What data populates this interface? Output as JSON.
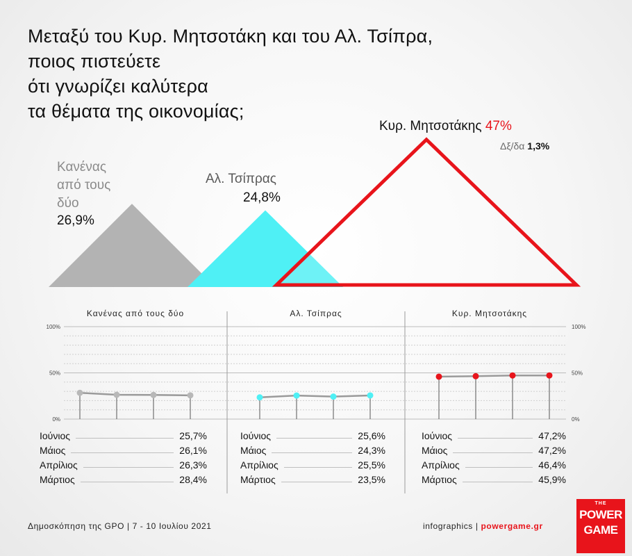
{
  "title": {
    "line1": "Μεταξύ του Κυρ. Μητσοτάκη και του Αλ. Τσίπρα,",
    "line2": "ποιος πιστεύετε",
    "line3": "ότι γνωρίζει καλύτερα",
    "line4": "τα θέματα της οικονομίας;"
  },
  "triangles": {
    "none": {
      "label1": "Κανένας",
      "label2": "από τους",
      "label3": "δύο",
      "value": "26,9%",
      "pct": 26.9,
      "color": "#b3b3b3"
    },
    "tsipras": {
      "label": "Αλ. Τσίπρας",
      "value": "24,8%",
      "pct": 24.8,
      "color": "#4ff0f5"
    },
    "mitsotakis": {
      "label": "Κυρ. Μητσοτάκης",
      "value": "47%",
      "pct": 47,
      "color": "#e8141b"
    },
    "dk_label": "Δξ/δα",
    "dk_value": "1,3%"
  },
  "panels": [
    {
      "title": "Κανένας από τους δύο",
      "dot_color": "#b8b8b8"
    },
    {
      "title": "Αλ. Τσίπρας",
      "dot_color": "#4ff0f5"
    },
    {
      "title": "Κυρ. Μητσοτάκης",
      "dot_color": "#e8141b"
    }
  ],
  "axis_left": [
    "100%",
    "50%",
    "0%"
  ],
  "axis_right": [
    "100%",
    "50%",
    "0%"
  ],
  "chart_data": [
    {
      "type": "line",
      "title": "Κανένας από τους δύο",
      "categories": [
        "Ιούνιος",
        "Μάιος",
        "Απρίλιος",
        "Μάρτιος"
      ],
      "values": [
        25.7,
        26.1,
        26.3,
        28.4
      ],
      "labels": [
        "25,7%",
        "26,1%",
        "26,3%",
        "28,4%"
      ],
      "ylim": [
        0,
        100
      ]
    },
    {
      "type": "line",
      "title": "Αλ. Τσίπρας",
      "categories": [
        "Ιούνιος",
        "Μάιος",
        "Απρίλιος",
        "Μάρτιος"
      ],
      "values": [
        25.6,
        24.3,
        25.5,
        23.5
      ],
      "labels": [
        "25,6%",
        "24,3%",
        "25,5%",
        "23,5%"
      ],
      "ylim": [
        0,
        100
      ]
    },
    {
      "type": "line",
      "title": "Κυρ. Μητσοτάκης",
      "categories": [
        "Ιούνιος",
        "Μάιος",
        "Απρίλιος",
        "Μάρτιος"
      ],
      "values": [
        47.2,
        47.2,
        46.4,
        45.9
      ],
      "labels": [
        "47,2%",
        "47,2%",
        "46,4%",
        "45,9%"
      ],
      "ylim": [
        0,
        100
      ]
    }
  ],
  "footer": {
    "source": "Δημοσκόπηση της GPO | 7 - 10 Ιουλίου 2021",
    "credit": "infographics |",
    "url": "powergame.gr"
  },
  "logo": {
    "the": "THE",
    "power": "POWER",
    "game": "GAME"
  }
}
